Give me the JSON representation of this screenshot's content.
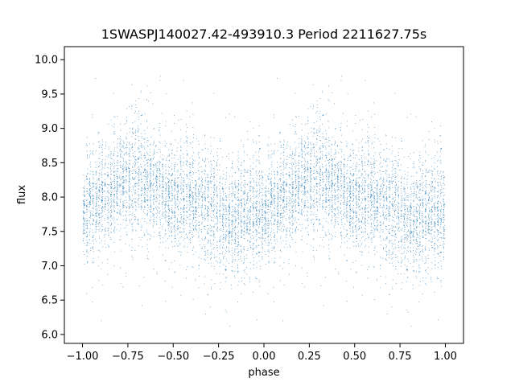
{
  "chart_data": {
    "type": "scatter",
    "title": "1SWASPJ140027.42-493910.3 Period 2211627.75s",
    "xlabel": "phase",
    "ylabel": "flux",
    "xlim": [
      -1.1,
      1.1
    ],
    "ylim": [
      5.87,
      10.19
    ],
    "xticks": [
      -1.0,
      -0.75,
      -0.5,
      -0.25,
      0.0,
      0.25,
      0.5,
      0.75,
      1.0
    ],
    "xtick_labels": [
      "−1.00",
      "−0.75",
      "−0.50",
      "−0.25",
      "0.00",
      "0.25",
      "0.50",
      "0.75",
      "1.00"
    ],
    "yticks": [
      6.0,
      6.5,
      7.0,
      7.5,
      8.0,
      8.5,
      9.0,
      9.5,
      10.0
    ],
    "ytick_labels": [
      "6.0",
      "6.5",
      "7.0",
      "7.5",
      "8.0",
      "8.5",
      "9.0",
      "9.5",
      "10.0"
    ],
    "grid": false,
    "marker_color": "#1f77b4",
    "baseline_profile": {
      "phase": [
        0.0,
        0.1,
        0.2,
        0.3,
        0.4,
        0.5,
        0.6,
        0.7,
        0.8,
        0.9,
        1.0
      ],
      "flux": [
        7.8,
        8.0,
        8.2,
        8.3,
        8.15,
        8.0,
        8.0,
        7.85,
        7.6,
        7.8,
        7.8
      ]
    },
    "scatter_sigma": 0.38,
    "n_points": 9000,
    "mirrored": true
  }
}
